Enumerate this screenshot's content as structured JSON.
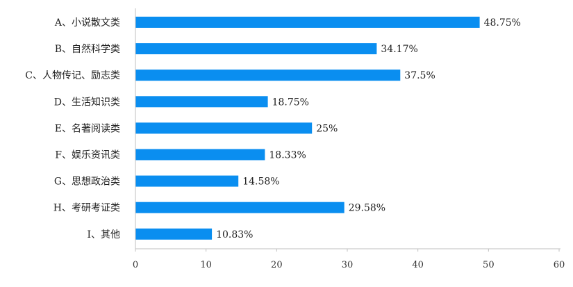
{
  "chart_data": {
    "type": "bar",
    "orientation": "horizontal",
    "categories": [
      "A、小说散文类",
      "B、自然科学类",
      "C、人物传记、励志类",
      "D、生活知识类",
      "E、名著阅读类",
      "F、娱乐资讯类",
      "G、思想政治类",
      "H、考研考证类",
      "I、其他"
    ],
    "values": [
      48.75,
      34.17,
      37.5,
      18.75,
      25,
      18.33,
      14.58,
      29.58,
      10.83
    ],
    "value_labels": [
      "48.75%",
      "34.17%",
      "37.5%",
      "18.75%",
      "25%",
      "18.33%",
      "14.58%",
      "29.58%",
      "10.83%"
    ],
    "xlim": [
      0,
      60
    ],
    "xticks": [
      "0",
      "10",
      "20",
      "30",
      "40",
      "50",
      "60"
    ],
    "title": "",
    "xlabel": "",
    "ylabel": "",
    "grid": false,
    "legend": "none",
    "bar_color": "#0a8ef0"
  }
}
